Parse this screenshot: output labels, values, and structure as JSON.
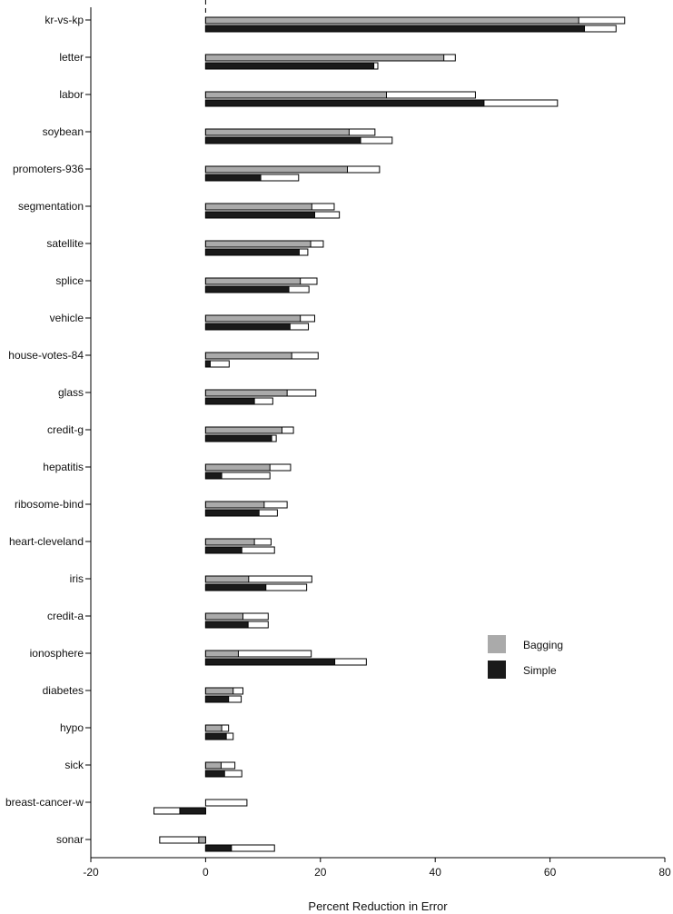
{
  "chart_data": {
    "type": "bar",
    "orientation": "horizontal",
    "xlabel": "Percent Reduction in Error",
    "xlim": [
      -20,
      80
    ],
    "xticks": [
      -20,
      0,
      20,
      40,
      60,
      80
    ],
    "categories": [
      "kr-vs-kp",
      "letter",
      "labor",
      "soybean",
      "promoters-936",
      "segmentation",
      "satellite",
      "splice",
      "vehicle",
      "house-votes-84",
      "glass",
      "credit-g",
      "hepatitis",
      "ribosome-bind",
      "heart-cleveland",
      "iris",
      "credit-a",
      "ionosphere",
      "diabetes",
      "hypo",
      "sick",
      "breast-cancer-w",
      "sonar"
    ],
    "series": [
      {
        "name": "Bagging",
        "color": "#aaaaaa",
        "values": [
          65,
          41.5,
          31.5,
          25,
          24.7,
          18.5,
          18.3,
          16.5,
          16.5,
          15,
          14.2,
          13.3,
          11.2,
          10.2,
          8.5,
          7.5,
          6.5,
          5.7,
          4.8,
          2.8,
          2.7,
          0,
          -1.2
        ],
        "range_ends": [
          73,
          43.5,
          47,
          29.5,
          30.3,
          22.4,
          20.5,
          19.4,
          19,
          19.6,
          19.2,
          15.3,
          14.8,
          14.2,
          11.4,
          18.5,
          10.9,
          18.4,
          6.5,
          4,
          5.1,
          7.2,
          -8
        ]
      },
      {
        "name": "Simple",
        "color": "#1a1a1a",
        "values": [
          66,
          29.3,
          48.5,
          27,
          9.6,
          19,
          16.3,
          14.5,
          14.7,
          0.8,
          8.5,
          11.5,
          2.8,
          9.3,
          6.3,
          10.5,
          7.4,
          22.5,
          4,
          3.6,
          3.3,
          -4.5,
          4.5
        ],
        "range_ends": [
          71.5,
          30,
          61.3,
          32.5,
          16.2,
          23.3,
          17.8,
          18,
          17.9,
          4.1,
          11.7,
          12.3,
          11.2,
          12.5,
          12,
          17.6,
          10.9,
          28,
          6.2,
          4.8,
          6.3,
          -9,
          12
        ]
      }
    ],
    "legend": {
      "position": "right-lower",
      "items": [
        {
          "label": "Bagging",
          "color": "#aaaaaa"
        },
        {
          "label": "Simple",
          "color": "#1a1a1a"
        }
      ]
    },
    "reference_line": {
      "x": 0,
      "style": "dashed-top"
    }
  }
}
